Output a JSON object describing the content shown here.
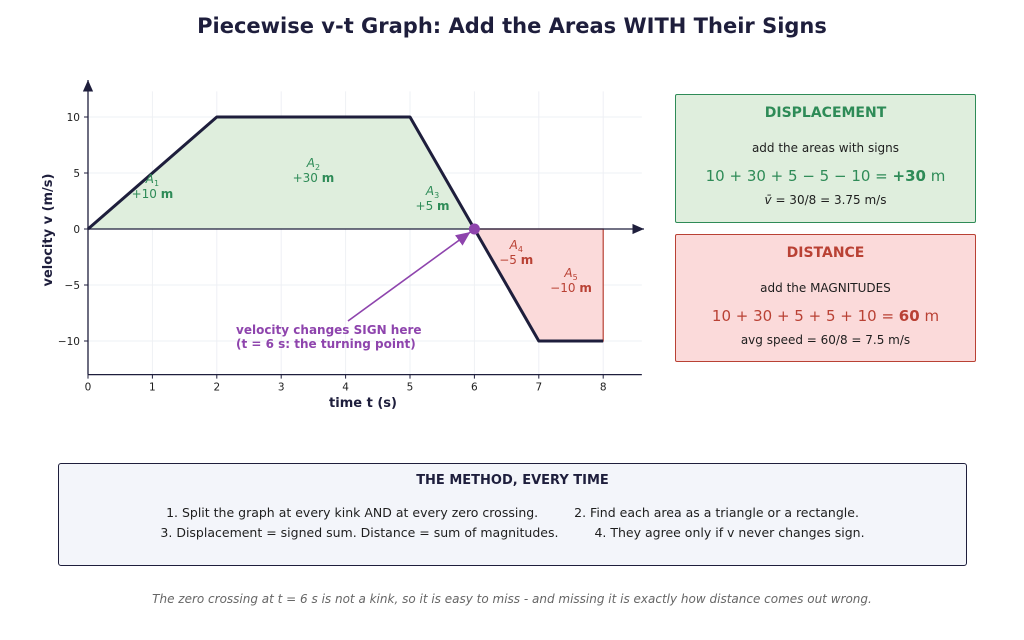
{
  "title": "Piecewise v-t Graph: Add the Areas WITH Their Signs",
  "chart_data": {
    "type": "line",
    "xlabel": "time  t  (s)",
    "ylabel": "velocity  v  (m/s)",
    "xlim": [
      0,
      8.6
    ],
    "ylim": [
      -13,
      13
    ],
    "x_ticks": [
      "0",
      "1",
      "2",
      "3",
      "4",
      "5",
      "6",
      "7",
      "8"
    ],
    "y_ticks": [
      "10",
      "5",
      "0",
      "−5",
      "−10"
    ],
    "grid": true,
    "series": [
      {
        "x": [
          0,
          2,
          5,
          6,
          7,
          8
        ],
        "y": [
          0,
          10,
          10,
          0,
          -10,
          -10
        ]
      }
    ],
    "areas": [
      {
        "name": "A",
        "sub": "1",
        "value": "+10",
        "unit": "m",
        "sign": "positive"
      },
      {
        "name": "A",
        "sub": "2",
        "value": "+30",
        "unit": "m",
        "sign": "positive"
      },
      {
        "name": "A",
        "sub": "3",
        "value": "+5",
        "unit": "m",
        "sign": "positive"
      },
      {
        "name": "A",
        "sub": "4",
        "value": "−5",
        "unit": "m",
        "sign": "negative"
      },
      {
        "name": "A",
        "sub": "5",
        "value": "−10",
        "unit": "m",
        "sign": "negative"
      }
    ],
    "turning_point": {
      "x": 6,
      "y": 0
    },
    "annotation": {
      "line1": "velocity changes SIGN here",
      "line2": "(t = 6 s: the turning point)"
    },
    "colors": {
      "line": "#1e1e3c",
      "positive": "#2e8b57",
      "positive_fill": "#dfeedd",
      "negative": "#b94134",
      "negative_fill": "#fbdada",
      "annotation": "#8e44ad"
    }
  },
  "displacement": {
    "heading": "DISPLACEMENT",
    "subtitle": "add the areas with signs",
    "equation": "10 + 30 + 5 − 5 − 10 = ",
    "result": "+30",
    "unit": " m",
    "note_symbol": "v̄",
    "note": " = 30/8 = 3.75 m/s"
  },
  "distance": {
    "heading": "DISTANCE",
    "subtitle": "add the MAGNITUDES",
    "equation": "10 + 30 + 5 + 5 + 10 = ",
    "result": "60",
    "unit": " m",
    "note": "avg speed  = 60/8 = 7.5 m/s"
  },
  "method": {
    "title": "THE METHOD, EVERY TIME",
    "step1": "1.  Split the graph at every kink AND at every zero crossing.",
    "step2": "2.  Find each area as a triangle or a rectangle.",
    "step3": "3.  Displacement = signed sum.   Distance = sum of magnitudes.",
    "step4": "4.  They agree only if v never changes sign."
  },
  "footer": "The zero crossing at t = 6 s is not a kink, so it is easy to miss - and missing it is exactly how distance comes out wrong."
}
